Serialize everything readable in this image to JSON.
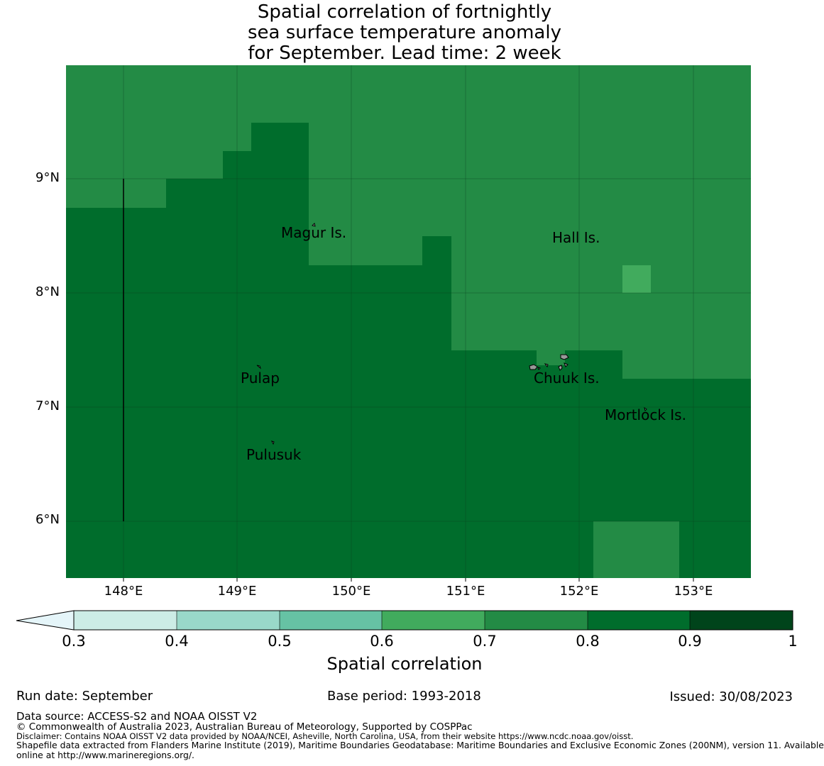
{
  "title": {
    "line1": "Spatial correlation of fortnightly",
    "line2": "sea surface temperature anomaly",
    "line3": "for September. Lead time: 2 week"
  },
  "colors": {
    "c07_08": "#238b45",
    "c08_09": "#006d2c",
    "c06_07": "#41ab5d",
    "c05_06": "#66c2a4",
    "c04_05": "#99d8c9",
    "c03_04": "#ccece6",
    "c_under": "#e5f5f9",
    "c09_10": "#00441b"
  },
  "map": {
    "lat_labels": [
      "9°N",
      "8°N",
      "7°N",
      "6°N"
    ],
    "lon_labels": [
      "148°E",
      "149°E",
      "150°E",
      "151°E",
      "152°E",
      "153°E"
    ],
    "lon_range": [
      147.5,
      153.5
    ],
    "lat_range": [
      5.5,
      10.0
    ],
    "places": [
      {
        "name": "Magur Is.",
        "lon": 149.6,
        "lat": 8.6
      },
      {
        "name": "Hall Is.",
        "lon": 151.9,
        "lat": 8.55
      },
      {
        "name": "Pulap",
        "lon": 149.2,
        "lat": 7.35
      },
      {
        "name": "Chuuk Is.",
        "lon": 151.85,
        "lat": 7.35
      },
      {
        "name": "Mortlock Is.",
        "lon": 152.6,
        "lat": 7.0
      },
      {
        "name": "Pulusuk",
        "lon": 149.3,
        "lat": 6.67
      }
    ]
  },
  "colorbar": {
    "ticks": [
      "0.3",
      "0.4",
      "0.5",
      "0.6",
      "0.7",
      "0.8",
      "0.9",
      "1"
    ],
    "label": "Spatial correlation",
    "extend": "min"
  },
  "footer": {
    "run_date": "Run date: September",
    "base_period": "Base period: 1993-2018",
    "issued": "Issued: 30/08/2023",
    "data_source": "Data source: ACCESS-S2 and NOAA OISST V2",
    "copyright": "© Commonwealth of Australia 2023, Australian Bureau of Meteorology, Supported by COSPPac",
    "disclaimer": "Disclaimer: Contains NOAA OISST V2 data provided by NOAA/NCEI, Asheville, North Carolina, USA, from their website https://www.ncdc.noaa.gov/oisst.",
    "shapefile_1": "Shapefile data extracted from Flanders Marine Institute (2019), Maritime Boundaries Geodatabase: Maritime Boundaries and Exclusive Economic Zones (200NM), version 11. Available",
    "shapefile_2": "online at http://www.marineregions.org/."
  }
}
